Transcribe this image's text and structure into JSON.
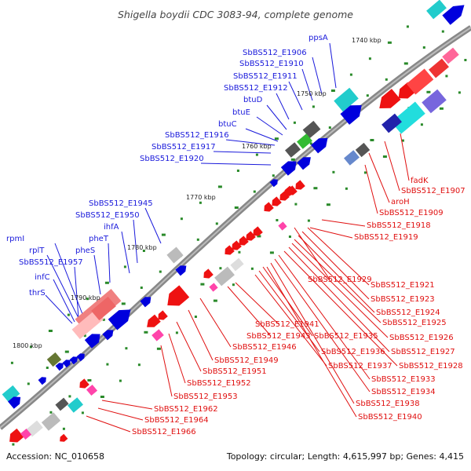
{
  "title": "Shigella boydii CDC 3083-94, complete genome",
  "accession": "Accession: NC_010658",
  "summary": "Topology: circular; Length: 4,615,997 bp; Genes: 4,415",
  "ruler": [
    "1740 kbp",
    "1750 kbp",
    "1760 kbp",
    "1770 kbp",
    "1780 kbp",
    "1790 kbp",
    "1800 kbp"
  ],
  "blue_genes": [
    "ppsA",
    "SbBS512_E1906",
    "SbBS512_E1910",
    "SbBS512_E1911",
    "SbBS512_E1912",
    "btuD",
    "btuE",
    "btuC",
    "SbBS512_E1916",
    "SbBS512_E1917",
    "SbBS512_E1920",
    "SbBS512_E1945",
    "SbBS512_E1950",
    "ihfA",
    "pheT",
    "pheS",
    "rpmI",
    "rplT",
    "SbBS512_E1957",
    "infC",
    "thrS"
  ],
  "red_genes": [
    "fadK",
    "SbBS512_E1907",
    "aroH",
    "SbBS512_E1909",
    "SbBS512_E1918",
    "SbBS512_E1919",
    "SbBS512_E1929",
    "SbBS512_E1921",
    "SbBS512_E1923",
    "SbBS512_E1924",
    "SbBS512_E1925",
    "SbBS512_E1926",
    "SbBS512_E1927",
    "SbBS512_E1928",
    "SbBS512_E1933",
    "SbBS512_E1934",
    "SbBS512_E1938",
    "SbBS512_E1940",
    "SbBS512_E1941",
    "SbBS512_E1943",
    "SbBS512_E1935",
    "SbBS512_E1936",
    "SbBS512_E1937",
    "SbBS512_E1946",
    "SbBS512_E1949",
    "SbBS512_E1951",
    "SbBS512_E1952",
    "SbBS512_E1953",
    "SbBS512_E1962",
    "SbBS512_E1964",
    "SbBS512_E1966"
  ],
  "colors": {
    "forward_label": "#1a1adb",
    "reverse_label": "#e01010",
    "backbone": "#888888"
  }
}
